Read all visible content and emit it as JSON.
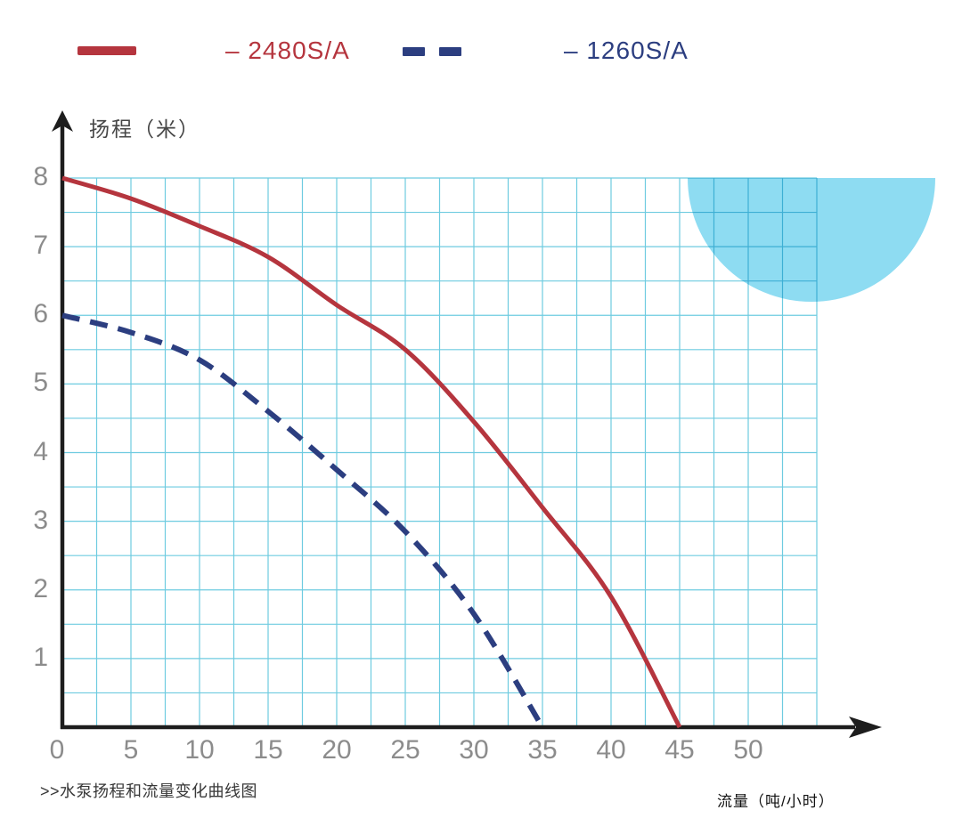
{
  "legend": {
    "items": [
      {
        "label": "– 2480S/A",
        "color": "#b5353e",
        "style": "solid"
      },
      {
        "label": "– 1260S/A",
        "color": "#2c3e80",
        "style": "dashed"
      }
    ]
  },
  "chart_data": {
    "type": "line",
    "title": "",
    "xlabel": "流量（吨/小时）",
    "ylabel": "扬程（米）",
    "xlim": [
      0,
      55
    ],
    "ylim": [
      0,
      8
    ],
    "x_ticks": [
      0,
      5,
      10,
      15,
      20,
      25,
      30,
      35,
      40,
      45,
      50
    ],
    "y_ticks": [
      1,
      2,
      3,
      4,
      5,
      6,
      7,
      8
    ],
    "grid": {
      "on": true,
      "x_step": 2.5,
      "y_step": 0.5,
      "color": "#6ecbe0"
    },
    "axis_color": "#1d1d1d",
    "tick_label_color": "#8c8c8c",
    "series": [
      {
        "name": "2480S/A",
        "color": "#b5353e",
        "line_style": "solid",
        "points": [
          [
            0,
            8
          ],
          [
            5,
            7.7
          ],
          [
            10,
            7.3
          ],
          [
            15,
            6.85
          ],
          [
            20,
            6.15
          ],
          [
            25,
            5.5
          ],
          [
            30,
            4.45
          ],
          [
            35,
            3.2
          ],
          [
            40,
            1.9
          ],
          [
            45,
            0
          ]
        ]
      },
      {
        "name": "1260S/A",
        "color": "#2c3e80",
        "line_style": "dashed",
        "points": [
          [
            0,
            6
          ],
          [
            5,
            5.75
          ],
          [
            10,
            5.35
          ],
          [
            15,
            4.6
          ],
          [
            20,
            3.75
          ],
          [
            25,
            2.85
          ],
          [
            30,
            1.65
          ],
          [
            35,
            0
          ]
        ]
      }
    ]
  },
  "decoration": {
    "circle_color": "#8edcf2"
  },
  "caption": ">>水泵扬程和流量变化曲线图"
}
